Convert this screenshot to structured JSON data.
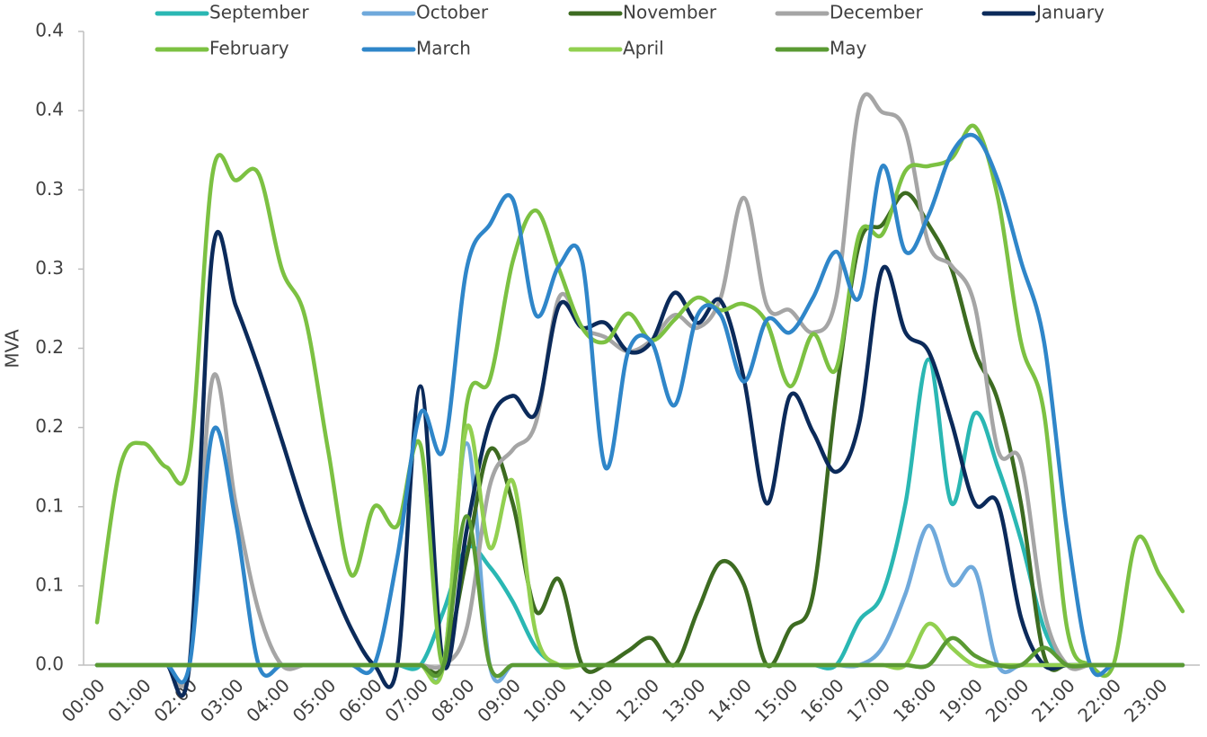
{
  "chart_data": {
    "type": "line",
    "y_label": "MVA",
    "categories": [
      "00:00",
      null,
      "01:00",
      null,
      "02:00",
      null,
      "03:00",
      null,
      "04:00",
      null,
      "05:00",
      null,
      "06:00",
      null,
      "07:00",
      null,
      "08:00",
      null,
      "09:00",
      null,
      "10:00",
      null,
      "11:00",
      null,
      "12:00",
      null,
      "13:00",
      null,
      "14:00",
      null,
      "15:00",
      null,
      "16:00",
      null,
      "17:00",
      null,
      "18:00",
      null,
      "19:00",
      null,
      "20:00",
      null,
      "21:00",
      null,
      "22:00",
      null,
      "23:00",
      null
    ],
    "ylim": [
      0,
      0.4
    ],
    "yticks": [
      {
        "value": 0,
        "label": "0.0"
      },
      {
        "value": 0.05,
        "label": "0.1"
      },
      0.1,
      {
        "value": 0.15,
        "label": "0.2"
      },
      0.2,
      {
        "value": 0.25,
        "label": "0.3"
      },
      0.3,
      {
        "value": 0.35,
        "label": "0.4"
      },
      0.4
    ],
    "grid": false,
    "legend": "top",
    "smooth": true,
    "series": [
      {
        "name": "September",
        "color": "#2ab7b3",
        "values": [
          0,
          0,
          0,
          0,
          0,
          0,
          0,
          0,
          0,
          0,
          0,
          0,
          0,
          0,
          0,
          0.034,
          0.074,
          0.062,
          0.04,
          0.011,
          0,
          0,
          0,
          0,
          0,
          0,
          0,
          0,
          0,
          0,
          0,
          0,
          0,
          0.028,
          0.045,
          0.102,
          0.193,
          0.102,
          0.159,
          0.125,
          0.079,
          0.023,
          0,
          0,
          0,
          0,
          0,
          0
        ]
      },
      {
        "name": "October",
        "color": "#6fa9db",
        "values": [
          0,
          0,
          0,
          0,
          0,
          0,
          0,
          0,
          0,
          0,
          0,
          0,
          0,
          0,
          0,
          0,
          0.14,
          0,
          0,
          0,
          0,
          0,
          0,
          0,
          0,
          0,
          0,
          0,
          0,
          0,
          0,
          0,
          0,
          0,
          0.011,
          0.045,
          0.088,
          0.051,
          0.06,
          0,
          0,
          0,
          0,
          0,
          0,
          0,
          0,
          0
        ]
      },
      {
        "name": "November",
        "color": "#3d6b21",
        "values": [
          0,
          0,
          0,
          0,
          0,
          0,
          0,
          0,
          0,
          0,
          0,
          0,
          0,
          0,
          0,
          0,
          0.068,
          0.136,
          0.102,
          0.034,
          0.054,
          0,
          0,
          0.009,
          0.017,
          0,
          0.034,
          0.065,
          0.051,
          0,
          0.023,
          0.045,
          0.17,
          0.266,
          0.278,
          0.298,
          0.278,
          0.25,
          0.198,
          0.167,
          0.102,
          0.006,
          0,
          0,
          0,
          0,
          0,
          0
        ]
      },
      {
        "name": "December",
        "color": "#a5a5a5",
        "values": [
          0,
          0,
          0,
          0,
          0,
          0.181,
          0.102,
          0.034,
          0,
          0,
          0,
          0,
          0,
          0,
          0,
          0,
          0.023,
          0.113,
          0.136,
          0.153,
          0.232,
          0.213,
          0.207,
          0.198,
          0.205,
          0.221,
          0.213,
          0.232,
          0.295,
          0.227,
          0.224,
          0.21,
          0.232,
          0.352,
          0.349,
          0.337,
          0.266,
          0.252,
          0.227,
          0.136,
          0.128,
          0.034,
          0,
          0,
          0,
          0,
          0,
          0
        ]
      },
      {
        "name": "January",
        "color": "#0b2a5a",
        "values": [
          0,
          0,
          0,
          0,
          0,
          0.261,
          0.227,
          0.187,
          0.142,
          0.096,
          0.057,
          0.023,
          0,
          0,
          0.176,
          0,
          0.085,
          0.153,
          0.17,
          0.159,
          0.227,
          0.213,
          0.216,
          0.198,
          0.204,
          0.235,
          0.216,
          0.23,
          0.181,
          0.102,
          0.17,
          0.147,
          0.122,
          0.153,
          0.25,
          0.21,
          0.198,
          0.153,
          0.102,
          0.102,
          0.03,
          0,
          0,
          0,
          0,
          0,
          0,
          0
        ]
      },
      {
        "name": "February",
        "color": "#7cc142",
        "values": [
          0.027,
          0.125,
          0.14,
          0.125,
          0.13,
          0.31,
          0.306,
          0.31,
          0.25,
          0.22,
          0.136,
          0.057,
          0.1,
          0.088,
          0.139,
          0,
          0.164,
          0.18,
          0.255,
          0.287,
          0.25,
          0.213,
          0.204,
          0.222,
          0.205,
          0.218,
          0.232,
          0.224,
          0.228,
          0.216,
          0.176,
          0.209,
          0.187,
          0.272,
          0.272,
          0.312,
          0.315,
          0.32,
          0.34,
          0.295,
          0.204,
          0.159,
          0.023,
          0,
          0,
          0.079,
          0.057,
          0.034
        ]
      },
      {
        "name": "March",
        "color": "#2f86c9",
        "values": [
          0,
          0,
          0,
          0,
          0,
          0.147,
          0.091,
          0,
          0,
          0,
          0,
          0,
          0,
          0.068,
          0.159,
          0.136,
          0.25,
          0.278,
          0.294,
          0.221,
          0.252,
          0.255,
          0.125,
          0.198,
          0.204,
          0.164,
          0.221,
          0.221,
          0.179,
          0.218,
          0.21,
          0.232,
          0.261,
          0.232,
          0.315,
          0.261,
          0.284,
          0.323,
          0.334,
          0.306,
          0.255,
          0.204,
          0.085,
          0,
          0,
          0,
          0,
          0
        ]
      },
      {
        "name": "April",
        "color": "#92d050",
        "values": [
          0,
          0,
          0,
          0,
          0,
          0,
          0,
          0,
          0,
          0,
          0,
          0,
          0,
          0,
          0,
          0,
          0.15,
          0.074,
          0.116,
          0.02,
          0,
          0,
          0,
          0,
          0,
          0,
          0,
          0,
          0,
          0,
          0,
          0,
          0,
          0,
          0,
          0,
          0.026,
          0.011,
          0,
          0,
          0,
          0,
          0,
          0,
          0,
          0,
          0,
          0
        ]
      },
      {
        "name": "May",
        "color": "#5a9a33",
        "values": [
          0,
          0,
          0,
          0,
          0,
          0,
          0,
          0,
          0,
          0,
          0,
          0,
          0,
          0,
          0,
          0,
          0.094,
          0,
          0,
          0,
          0,
          0,
          0,
          0,
          0,
          0,
          0,
          0,
          0,
          0,
          0,
          0,
          0,
          0,
          0,
          0,
          0,
          0.017,
          0.006,
          0,
          0,
          0.011,
          0,
          0,
          0,
          0,
          0,
          0
        ]
      }
    ]
  }
}
